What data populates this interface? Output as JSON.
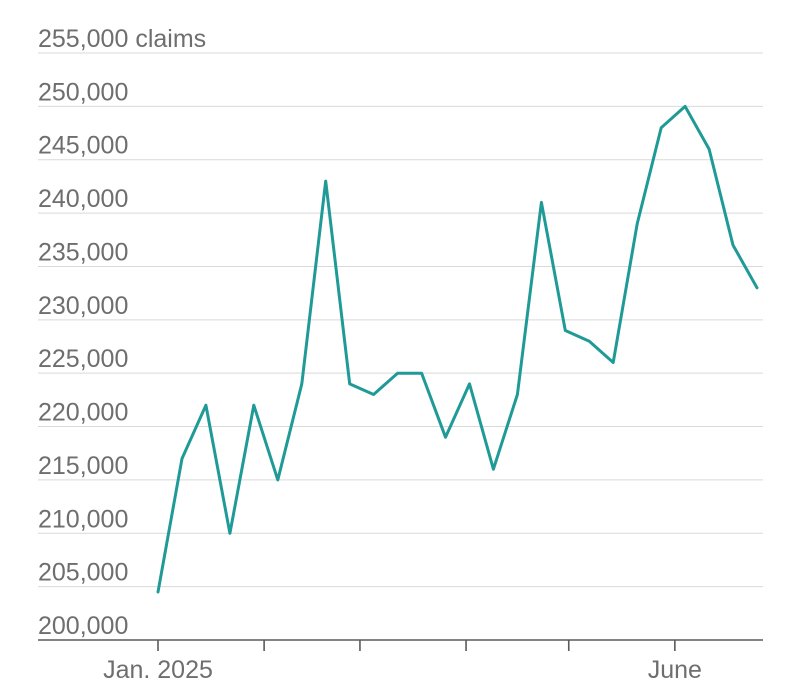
{
  "chart_data": {
    "type": "line",
    "ylim": [
      200000,
      255000
    ],
    "y_ticks": [
      {
        "value": 255000,
        "label": "255,000 claims"
      },
      {
        "value": 250000,
        "label": "250,000"
      },
      {
        "value": 245000,
        "label": "245,000"
      },
      {
        "value": 240000,
        "label": "240,000"
      },
      {
        "value": 235000,
        "label": "235,000"
      },
      {
        "value": 230000,
        "label": "230,000"
      },
      {
        "value": 225000,
        "label": "225,000"
      },
      {
        "value": 220000,
        "label": "220,000"
      },
      {
        "value": 215000,
        "label": "215,000"
      },
      {
        "value": 210000,
        "label": "210,000"
      },
      {
        "value": 205000,
        "label": "205,000"
      },
      {
        "value": 200000,
        "label": "200,000"
      }
    ],
    "x_ticks": [
      {
        "date": "2025-01-01",
        "label": "Jan. 2025"
      },
      {
        "date": "2025-02-01",
        "label": ""
      },
      {
        "date": "2025-03-01",
        "label": ""
      },
      {
        "date": "2025-04-01",
        "label": ""
      },
      {
        "date": "2025-05-01",
        "label": ""
      },
      {
        "date": "2025-06-01",
        "label": "June"
      }
    ],
    "x_range": [
      "2025-01-01",
      "2025-06-30"
    ],
    "grid": true,
    "series": [
      {
        "color": "#1f9a97",
        "points": [
          {
            "x": "2025-01-01",
            "y": 204500
          },
          {
            "x": "2025-01-08",
            "y": 217000
          },
          {
            "x": "2025-01-15",
            "y": 222000
          },
          {
            "x": "2025-01-22",
            "y": 210000
          },
          {
            "x": "2025-01-29",
            "y": 222000
          },
          {
            "x": "2025-02-05",
            "y": 215000
          },
          {
            "x": "2025-02-12",
            "y": 224000
          },
          {
            "x": "2025-02-19",
            "y": 243000
          },
          {
            "x": "2025-02-26",
            "y": 224000
          },
          {
            "x": "2025-03-05",
            "y": 223000
          },
          {
            "x": "2025-03-12",
            "y": 225000
          },
          {
            "x": "2025-03-19",
            "y": 225000
          },
          {
            "x": "2025-03-26",
            "y": 219000
          },
          {
            "x": "2025-04-02",
            "y": 224000
          },
          {
            "x": "2025-04-09",
            "y": 216000
          },
          {
            "x": "2025-04-16",
            "y": 223000
          },
          {
            "x": "2025-04-23",
            "y": 241000
          },
          {
            "x": "2025-04-30",
            "y": 229000
          },
          {
            "x": "2025-05-07",
            "y": 228000
          },
          {
            "x": "2025-05-14",
            "y": 226000
          },
          {
            "x": "2025-05-21",
            "y": 239000
          },
          {
            "x": "2025-05-28",
            "y": 248000
          },
          {
            "x": "2025-06-04",
            "y": 250000
          },
          {
            "x": "2025-06-11",
            "y": 246000
          },
          {
            "x": "2025-06-18",
            "y": 237000
          },
          {
            "x": "2025-06-25",
            "y": 233000
          }
        ]
      }
    ]
  }
}
